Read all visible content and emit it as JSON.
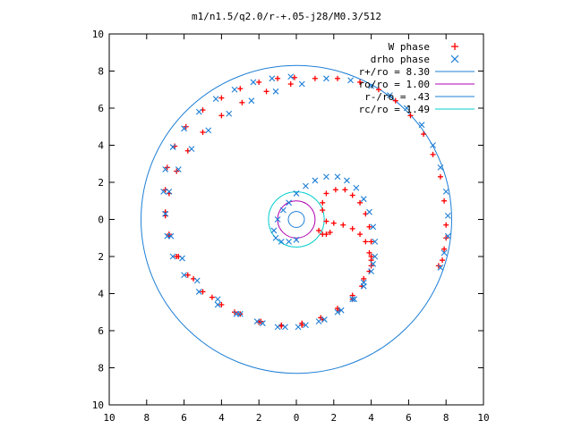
{
  "chart_data": {
    "type": "scatter",
    "title": "m1/n1.5/q2.0/r-+.05-j28/M0.3/512",
    "xlabel": "",
    "ylabel": "",
    "xlim": [
      -10,
      10
    ],
    "ylim": [
      -10,
      10
    ],
    "xticks": [
      -10,
      -8,
      -6,
      -4,
      -2,
      0,
      2,
      4,
      6,
      8,
      10
    ],
    "yticks": [
      -10,
      -8,
      -6,
      -4,
      -2,
      0,
      2,
      4,
      6,
      8,
      10
    ],
    "xtick_labels": [
      "10",
      "8",
      "6",
      "4",
      "2",
      "0",
      "2",
      "4",
      "6",
      "8",
      "10"
    ],
    "ytick_labels": [
      "10",
      "8",
      "6",
      "4",
      "2",
      "0",
      "2",
      "4",
      "6",
      "8",
      "10"
    ],
    "grid": false,
    "legend_position": "top-right",
    "series": [
      {
        "name": "W phase",
        "kind": "points",
        "marker": "plus",
        "color": "#ff0000",
        "x": [
          -0.1,
          -1.0,
          -2.0,
          -3.0,
          -4.0,
          -5.0,
          -5.9,
          -6.5,
          -6.9,
          -7.0,
          -7.0,
          -6.8,
          -6.3,
          -5.5,
          -4.5,
          -3.3,
          -2.0,
          -0.8,
          0.3,
          1.4,
          2.3,
          3.0,
          3.5,
          3.9,
          4.0,
          4.0,
          3.9,
          3.7,
          3.4,
          3.0,
          2.6,
          2.1,
          1.6,
          1.4,
          1.4,
          1.6,
          2.0,
          2.5,
          3.0,
          3.4,
          3.7,
          3.9,
          4.0,
          1.2,
          1.4,
          1.6,
          1.8,
          4.0,
          3.6,
          3.0,
          2.2,
          1.3,
          0.3,
          -0.8,
          -1.9,
          -3.0,
          -4.0,
          -5.0,
          -5.8,
          -6.4,
          -6.8,
          -7.0,
          -6.8,
          -6.4,
          -5.8,
          -5.0,
          -4.0,
          -2.9,
          -1.6,
          -0.3,
          1.0,
          2.2,
          3.4,
          4.4,
          5.3,
          6.1,
          6.8,
          7.3,
          7.7,
          7.9,
          8.0,
          8.0,
          7.9,
          7.8,
          7.6
        ],
        "y": [
          7.65,
          7.6,
          7.4,
          7.05,
          6.55,
          5.9,
          5.0,
          3.95,
          2.8,
          1.6,
          0.4,
          -0.8,
          -2.0,
          -3.2,
          -4.2,
          -5.0,
          -5.55,
          -5.75,
          -5.7,
          -5.4,
          -4.9,
          -4.3,
          -3.6,
          -2.8,
          -2.0,
          -1.2,
          -0.4,
          0.3,
          0.9,
          1.3,
          1.6,
          1.6,
          1.4,
          0.9,
          0.5,
          -0.1,
          -0.2,
          -0.3,
          -0.5,
          -0.8,
          -1.2,
          -1.8,
          -2.5,
          -0.6,
          -0.8,
          -0.8,
          -0.7,
          -2.2,
          -3.2,
          -4.1,
          -4.8,
          -5.3,
          -5.6,
          -5.7,
          -5.5,
          -5.1,
          -4.6,
          -3.9,
          -3.0,
          -2.0,
          -0.9,
          0.2,
          1.4,
          2.6,
          3.7,
          4.7,
          5.6,
          6.3,
          6.9,
          7.3,
          7.6,
          7.6,
          7.4,
          7.0,
          6.4,
          5.6,
          4.6,
          3.5,
          2.3,
          1.0,
          -0.3,
          -1.0,
          -1.6,
          -2.2,
          -2.5
        ]
      },
      {
        "name": "drho phase",
        "kind": "points",
        "marker": "cross",
        "color": "#1e7fd6",
        "x": [
          -0.3,
          -1.3,
          -2.3,
          -3.3,
          -4.3,
          -5.2,
          -6.0,
          -6.6,
          -7.0,
          -7.1,
          -7.0,
          -6.7,
          -6.1,
          -5.3,
          -4.2,
          -3.0,
          -1.8,
          -0.6,
          0.5,
          1.5,
          2.4,
          3.1,
          3.6,
          4.0,
          4.2,
          4.2,
          4.1,
          3.9,
          3.6,
          3.2,
          2.7,
          2.2,
          1.6,
          1.0,
          0.5,
          0.0,
          -0.4,
          -0.7,
          -1.0,
          -1.2,
          -1.1,
          -0.8,
          -0.4,
          0.0,
          4.1,
          3.6,
          3.0,
          2.2,
          1.2,
          0.1,
          -1.0,
          -2.1,
          -3.2,
          -4.2,
          -5.2,
          -6.0,
          -6.6,
          -6.9,
          -7.0,
          -6.8,
          -6.3,
          -5.6,
          -4.7,
          -3.6,
          -2.4,
          -1.1,
          0.3,
          1.6,
          2.9,
          4.0,
          5.0,
          5.9,
          6.7,
          7.3,
          7.7,
          8.0,
          8.1,
          8.1,
          7.9,
          7.7
        ],
        "y": [
          7.7,
          7.6,
          7.4,
          7.0,
          6.5,
          5.8,
          4.9,
          3.9,
          2.7,
          1.5,
          0.3,
          -0.9,
          -2.1,
          -3.3,
          -4.3,
          -5.1,
          -5.6,
          -5.8,
          -5.7,
          -5.4,
          -4.9,
          -4.3,
          -3.6,
          -2.8,
          -2.0,
          -1.2,
          -0.4,
          0.4,
          1.1,
          1.7,
          2.1,
          2.3,
          2.3,
          2.1,
          1.8,
          1.4,
          0.9,
          0.5,
          0.0,
          -0.6,
          -1.0,
          -1.2,
          -1.2,
          -1.1,
          -2.4,
          -3.4,
          -4.3,
          -5.0,
          -5.5,
          -5.8,
          -5.8,
          -5.5,
          -5.1,
          -4.6,
          -3.9,
          -3.0,
          -2.0,
          -0.9,
          0.3,
          1.5,
          2.7,
          3.8,
          4.8,
          5.7,
          6.4,
          6.9,
          7.3,
          7.6,
          7.5,
          7.2,
          6.7,
          6.0,
          5.1,
          4.0,
          2.8,
          1.5,
          0.2,
          -0.9,
          -1.8,
          -2.6
        ]
      },
      {
        "name": "r+/ro = 8.30",
        "kind": "circle",
        "radius": 8.3,
        "color": "#1e7fd6"
      },
      {
        "name": "ro/ro = 1.00",
        "kind": "circle",
        "radius": 1.0,
        "color": "#b000b0"
      },
      {
        "name": "r-/ro = .43",
        "kind": "circle",
        "radius": 0.43,
        "color": "#1e7fd6"
      },
      {
        "name": "rc/ro = 1.49",
        "kind": "circle",
        "radius": 1.49,
        "color": "#00cccc"
      }
    ]
  }
}
